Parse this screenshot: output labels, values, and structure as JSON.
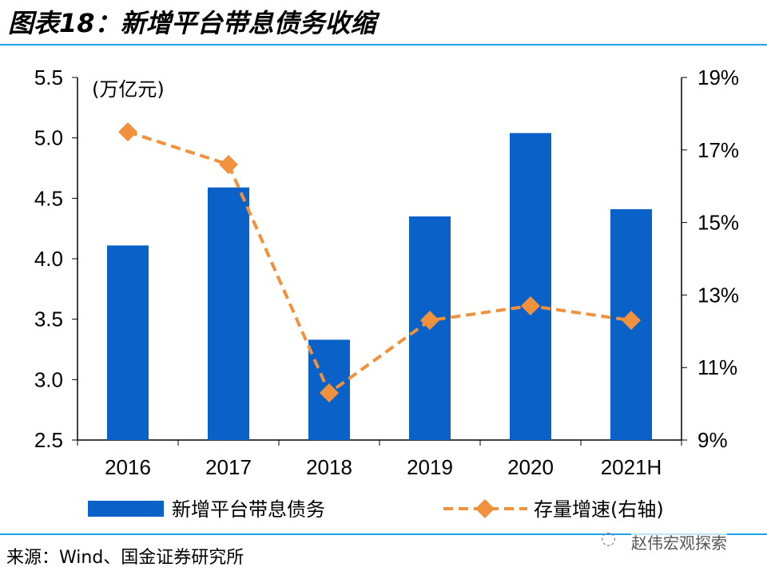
{
  "title": "图表18：新增平台带息债务收缩",
  "source": "来源：Wind、国金证券研究所",
  "watermark": "赵伟宏观探索",
  "colors": {
    "bar": "#0a62c9",
    "line": "#f0913c",
    "rule": "#1aa3e8"
  },
  "chart_data": {
    "type": "bar",
    "categories": [
      "2016",
      "2017",
      "2018",
      "2019",
      "2020",
      "2021H"
    ],
    "unit_label": "(万亿元)",
    "series": [
      {
        "name": "新增平台带息债务",
        "type": "bar",
        "axis": "left",
        "values": [
          4.11,
          4.59,
          3.33,
          4.35,
          5.04,
          4.41
        ]
      },
      {
        "name": "存量增速(右轴)",
        "type": "line",
        "axis": "right",
        "values": [
          17.5,
          16.6,
          10.3,
          12.3,
          12.7,
          12.3
        ]
      }
    ],
    "ylim_left": [
      2.5,
      5.5
    ],
    "yticks_left": [
      "2.5",
      "3.0",
      "3.5",
      "4.0",
      "4.5",
      "5.0",
      "5.5"
    ],
    "ylim_right": [
      9,
      19
    ],
    "yticks_right": [
      "9%",
      "11%",
      "13%",
      "15%",
      "17%",
      "19%"
    ],
    "legend_position": "bottom"
  }
}
